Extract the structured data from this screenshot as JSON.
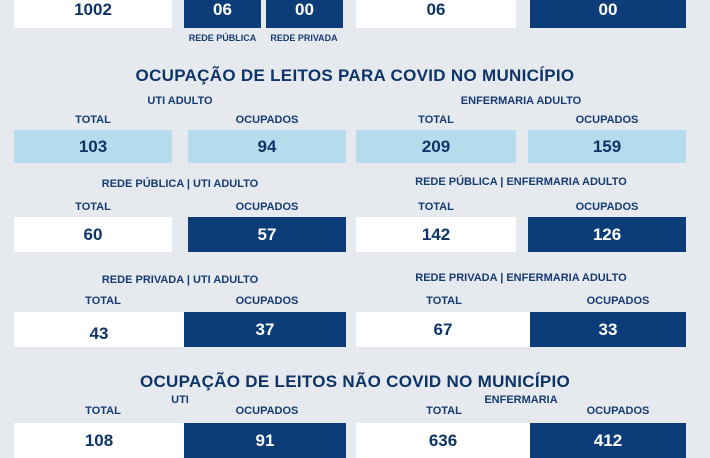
{
  "top": {
    "values": [
      "1002",
      "06",
      "00",
      "06",
      "00"
    ],
    "labels": [
      "REDE PÚBLICA",
      "REDE PRIVADA"
    ]
  },
  "covid": {
    "title": "OCUPAÇÃO DE LEITOS PARA COVID NO MUNICÍPIO",
    "uti_title": "UTI ADULTO",
    "enf_title": "ENFERMARIA ADULTO",
    "total_label": "TOTAL",
    "ocupados_label": "OCUPADOS",
    "uti_total": "103",
    "uti_ocupados": "94",
    "enf_total": "209",
    "enf_ocupados": "159",
    "pub_uti_title": "REDE PÚBLICA | UTI ADULTO",
    "pub_enf_title": "REDE PÚBLICA | ENFERMARIA ADULTO",
    "pub_uti_total": "60",
    "pub_uti_ocupados": "57",
    "pub_enf_total": "142",
    "pub_enf_ocupados": "126",
    "priv_uti_title": "REDE PRIVADA | UTI ADULTO",
    "priv_enf_title": "REDE PRIVADA | ENFERMARIA ADULTO",
    "priv_uti_total": "43",
    "priv_uti_ocupados": "37",
    "priv_enf_total": "67",
    "priv_enf_ocupados": "33"
  },
  "noncovid": {
    "title": "OCUPAÇÃO DE LEITOS NÃO COVID NO MUNICÍPIO",
    "uti_title": "UTI",
    "enf_title": "ENFERMARIA",
    "total_label": "TOTAL",
    "ocupados_label": "OCUPADOS",
    "uti_total": "108",
    "uti_ocupados": "91",
    "enf_total": "636",
    "enf_ocupados": "412"
  },
  "colors": {
    "background": "#e6e9ee",
    "dark_blue": "#0c3d78",
    "light_blue": "#b5dced",
    "white": "#ffffff",
    "text": "#123a70"
  }
}
